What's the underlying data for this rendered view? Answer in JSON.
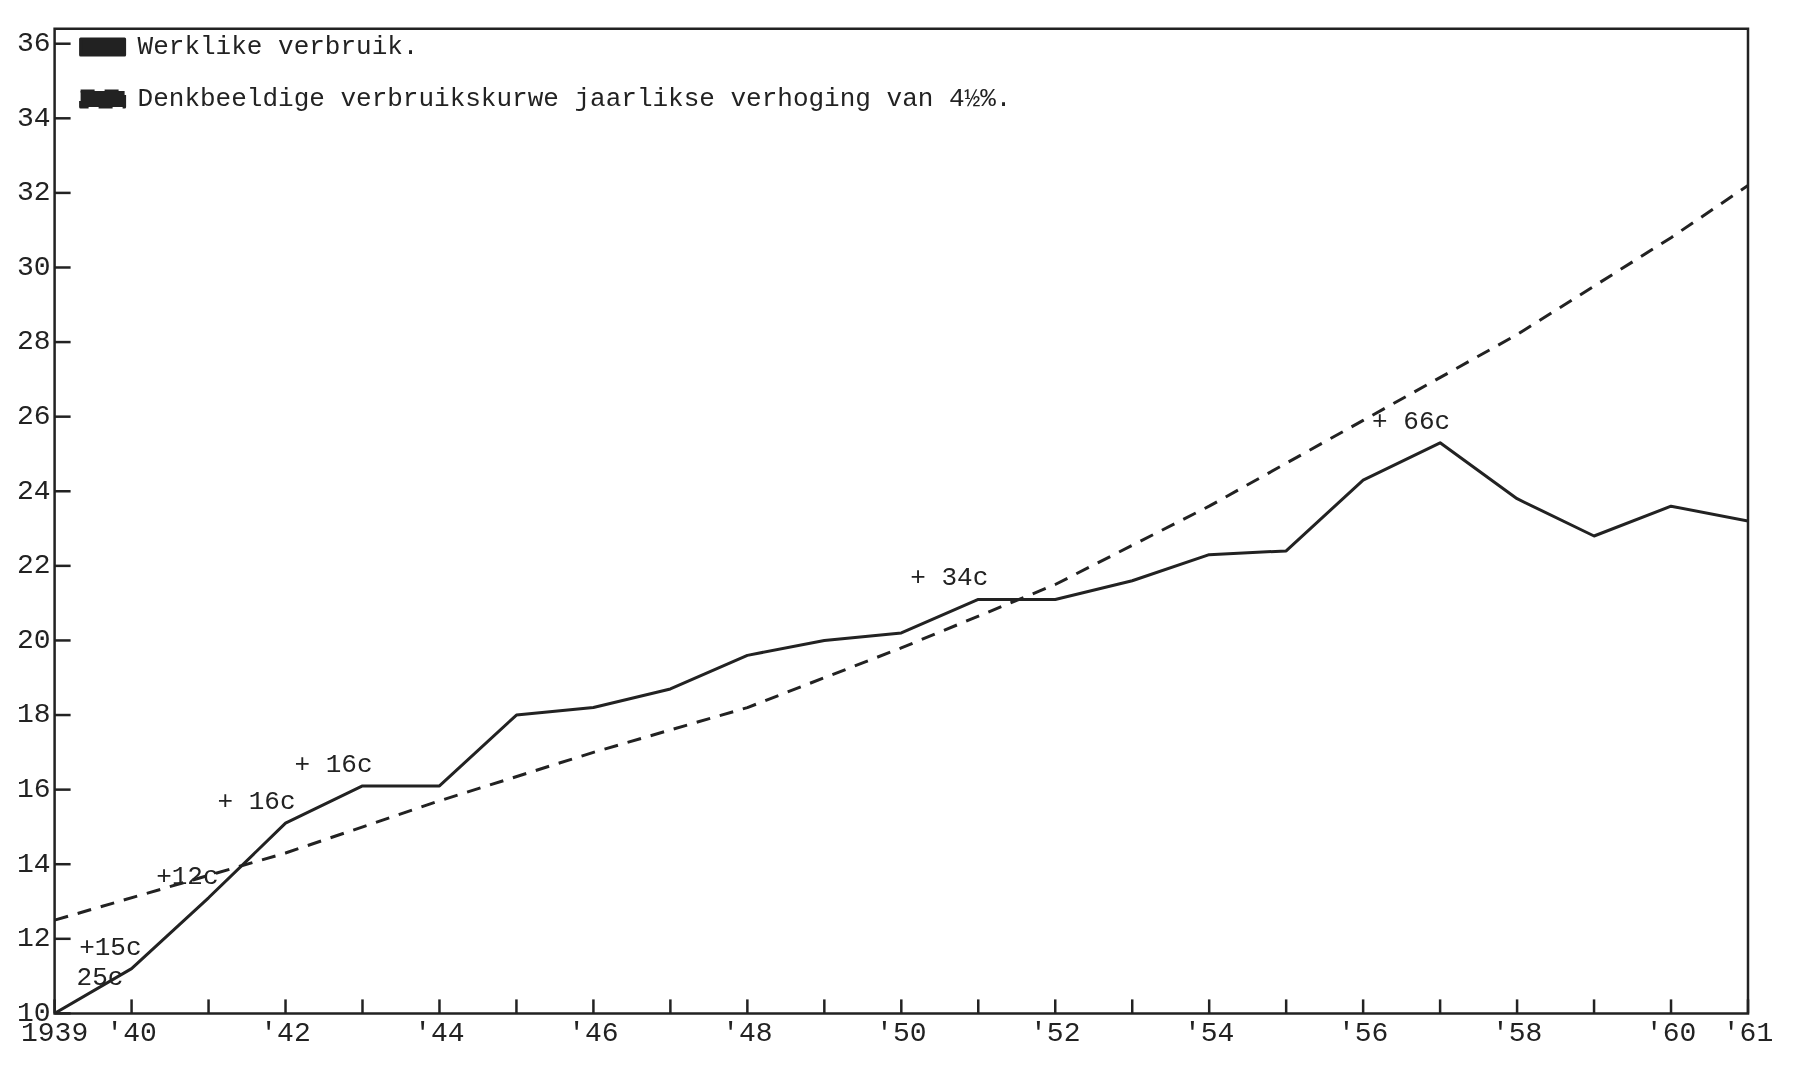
{
  "chart_data": {
    "type": "line",
    "legend": "top left",
    "grid": false,
    "marker": "none",
    "xlim": [
      1939,
      1961
    ],
    "xticks": [
      {
        "value": 1939,
        "label": "1939"
      },
      {
        "value": 1940,
        "label": "'40"
      },
      {
        "value": 1941,
        "label": null
      },
      {
        "value": 1942,
        "label": "'42"
      },
      {
        "value": 1943,
        "label": null
      },
      {
        "value": 1944,
        "label": "'44"
      },
      {
        "value": 1945,
        "label": null
      },
      {
        "value": 1946,
        "label": "'46"
      },
      {
        "value": 1947,
        "label": null
      },
      {
        "value": 1948,
        "label": "'48"
      },
      {
        "value": 1949,
        "label": null
      },
      {
        "value": 1950,
        "label": "'50"
      },
      {
        "value": 1951,
        "label": null
      },
      {
        "value": 1952,
        "label": "'52"
      },
      {
        "value": 1953,
        "label": null
      },
      {
        "value": 1954,
        "label": "'54"
      },
      {
        "value": 1955,
        "label": null
      },
      {
        "value": 1956,
        "label": "'56"
      },
      {
        "value": 1957,
        "label": null
      },
      {
        "value": 1958,
        "label": "'58"
      },
      {
        "value": 1959,
        "label": null
      },
      {
        "value": 1960,
        "label": "'60"
      },
      {
        "value": 1961,
        "label": "'61"
      }
    ],
    "ylim": [
      10,
      36.4
    ],
    "yticks": [
      10,
      12,
      14,
      16,
      18,
      20,
      22,
      24,
      26,
      28,
      30,
      32,
      34,
      36
    ],
    "series": [
      {
        "name": "Werklike verbruik.",
        "color": "#222222",
        "line_style": "solid",
        "x": [
          1939,
          1940,
          1941,
          1942,
          1943,
          1944,
          1945,
          1946,
          1947,
          1948,
          1949,
          1950,
          1951,
          1952,
          1953,
          1954,
          1955,
          1956,
          1957,
          1958,
          1959,
          1960,
          1961
        ],
        "values": [
          10,
          11.2,
          13.1,
          15.1,
          16.1,
          16.1,
          18,
          18.2,
          18.7,
          19.6,
          20,
          20.2,
          21.1,
          21.1,
          21.6,
          22.3,
          22.4,
          24.3,
          25.3,
          23.8,
          22.8,
          23.6,
          23.2
        ]
      },
      {
        "name": "Denkbeeldige verbruikskurwe jaarlikse verhoging van 4½%.",
        "color": "#222222",
        "line_style": "dashed",
        "x": [
          1939,
          1942,
          1944,
          1946,
          1948,
          1950,
          1952,
          1954,
          1956,
          1958,
          1960,
          1961
        ],
        "values": [
          12.5,
          14.3,
          15.7,
          17,
          18.2,
          19.8,
          21.5,
          23.6,
          25.9,
          28.2,
          30.8,
          32.2
        ]
      }
    ],
    "annotations": [
      {
        "text": "25c",
        "x": 1939,
        "y": 10
      },
      {
        "text": "+15c",
        "x": 1940,
        "y": 11.2
      },
      {
        "text": "+12c",
        "x": 1941,
        "y": 13.1
      },
      {
        "text": "+ 16c",
        "x": 1942,
        "y": 15.1
      },
      {
        "text": "+ 16c",
        "x": 1943,
        "y": 16.1
      },
      {
        "text": "+ 34c",
        "x": 1951,
        "y": 21.1
      },
      {
        "text": "+ 66c",
        "x": 1957,
        "y": 25.3
      }
    ]
  }
}
